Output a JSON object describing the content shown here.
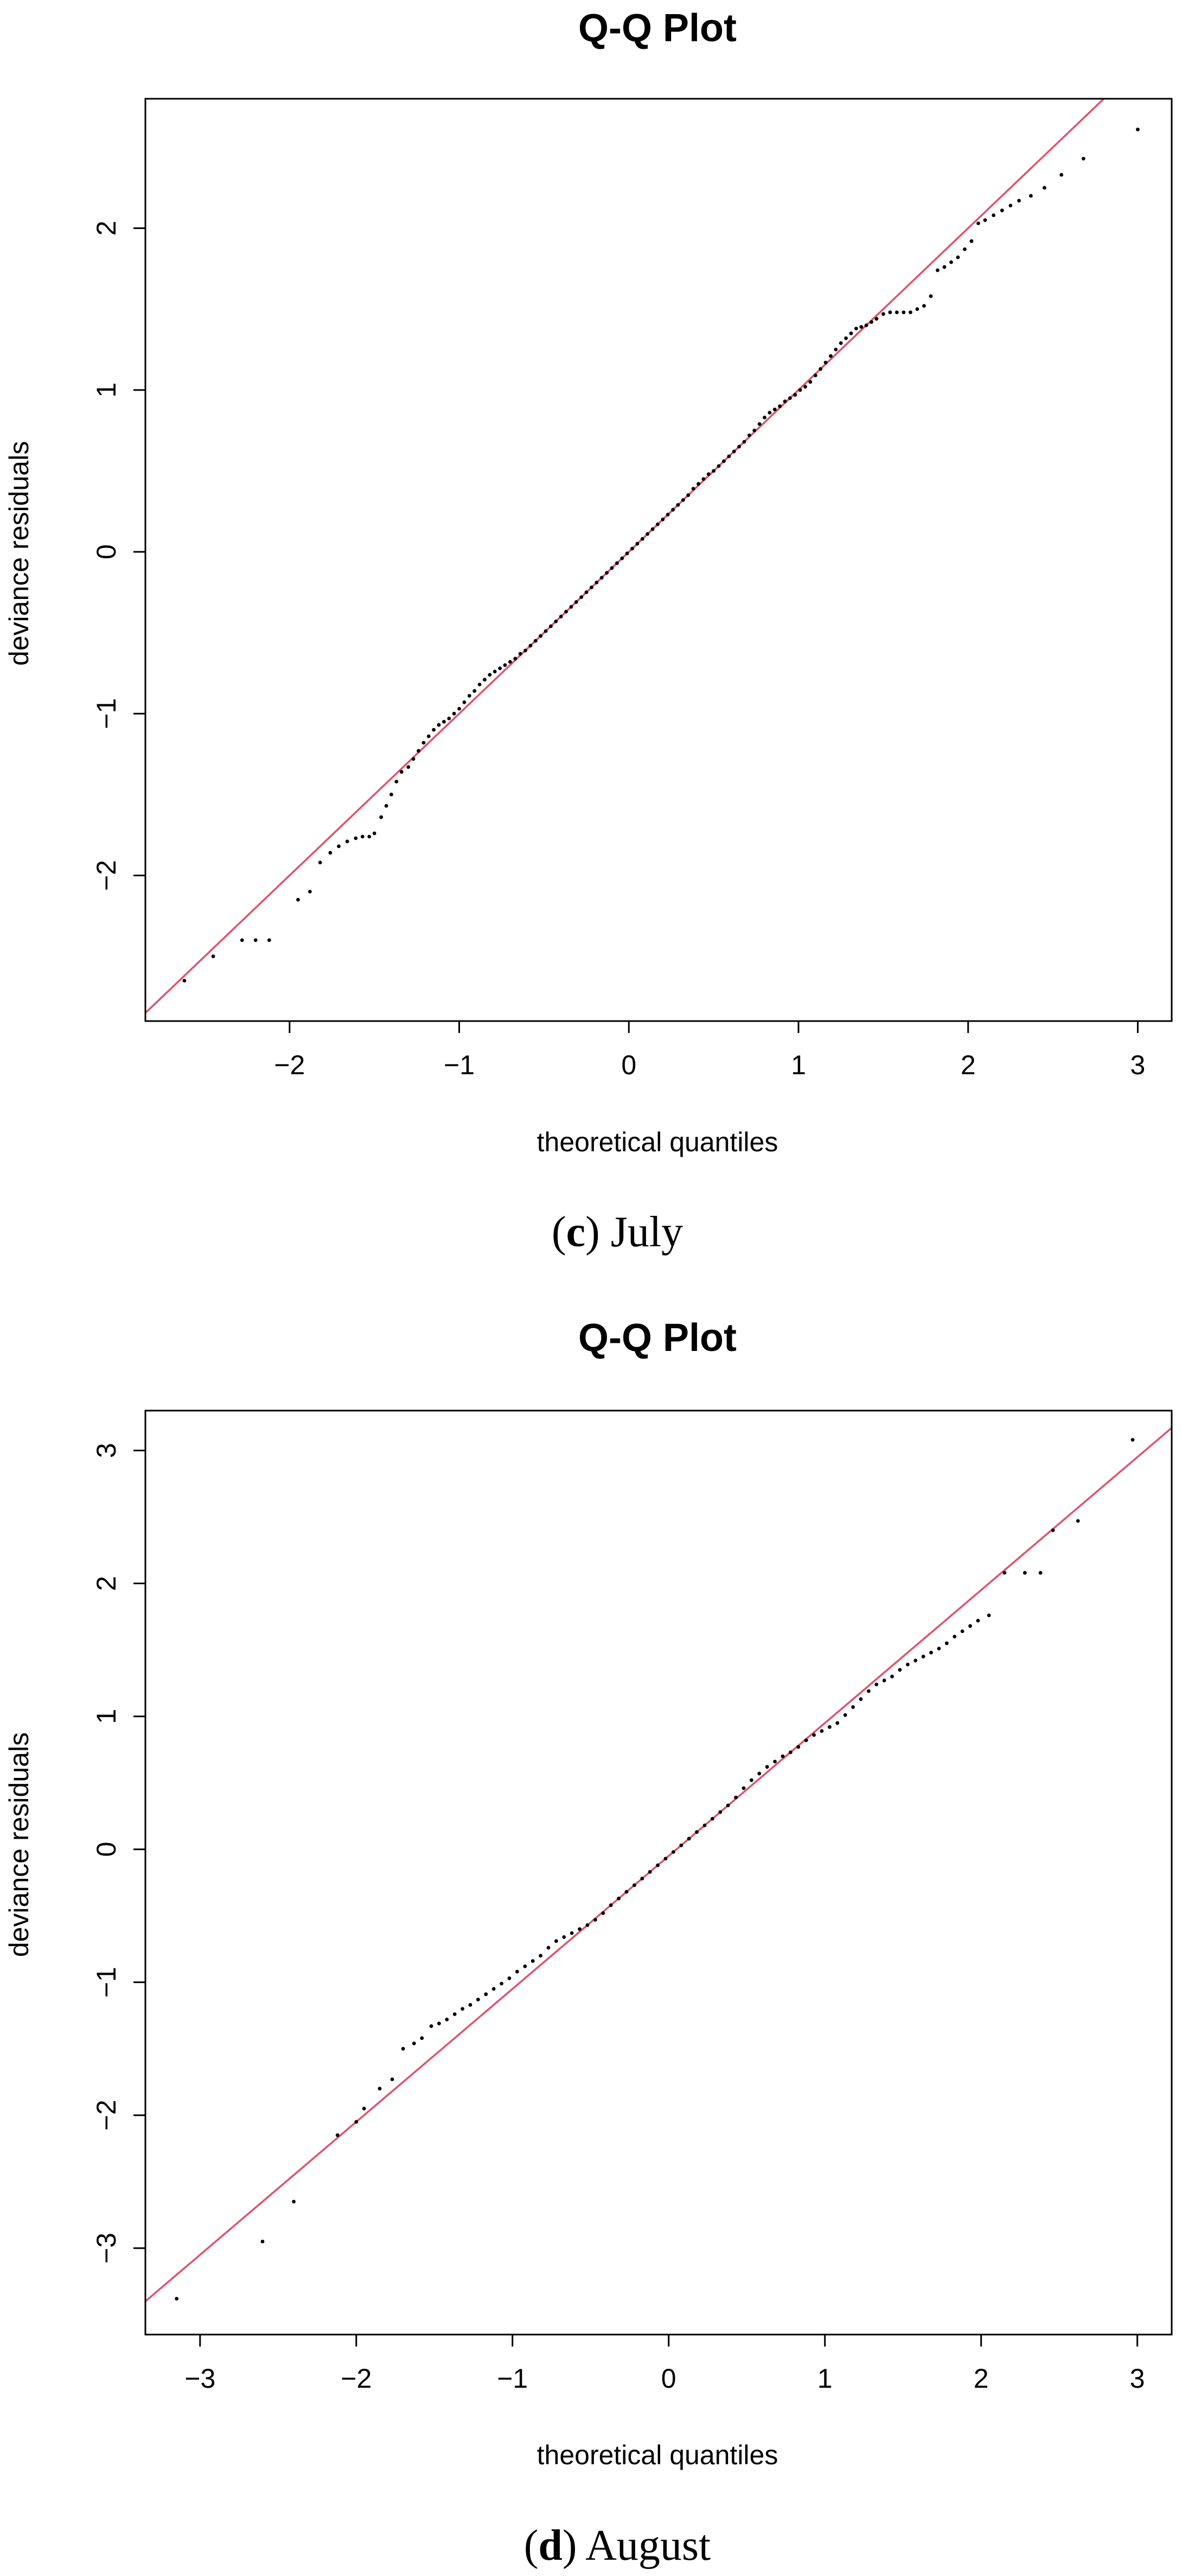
{
  "chart_data": [
    {
      "type": "scatter",
      "title": "Q-Q Plot",
      "xlabel": "theoretical quantiles",
      "ylabel": "deviance residuals",
      "caption_letter": "c",
      "caption_text": "July",
      "xlim": [
        -2.85,
        3.2
      ],
      "ylim": [
        -2.9,
        2.8
      ],
      "xticks": [
        -2,
        -1,
        0,
        1,
        2,
        3
      ],
      "xtick_labels": [
        "−2",
        "−1",
        "0",
        "1",
        "2",
        "3"
      ],
      "yticks": [
        -2,
        -1,
        0,
        1,
        2
      ],
      "ytick_labels": [
        "−2",
        "−1",
        "0",
        "1",
        "2"
      ],
      "reference_line": {
        "slope": 1.0,
        "intercept": 0.0,
        "color": "#df536b"
      },
      "point_color": "#000000",
      "points": [
        [
          -2.62,
          -2.65
        ],
        [
          -2.45,
          -2.5
        ],
        [
          -2.28,
          -2.4
        ],
        [
          -2.2,
          -2.4
        ],
        [
          -2.12,
          -2.4
        ],
        [
          -1.95,
          -2.15
        ],
        [
          -1.88,
          -2.1
        ],
        [
          -1.82,
          -1.92
        ],
        [
          -1.76,
          -1.86
        ],
        [
          -1.71,
          -1.82
        ],
        [
          -1.66,
          -1.79
        ],
        [
          -1.61,
          -1.77
        ],
        [
          -1.57,
          -1.76
        ],
        [
          -1.53,
          -1.76
        ],
        [
          -1.5,
          -1.74
        ],
        [
          -1.46,
          -1.64
        ],
        [
          -1.43,
          -1.57
        ],
        [
          -1.4,
          -1.5
        ],
        [
          -1.37,
          -1.42
        ],
        [
          -1.34,
          -1.36
        ],
        [
          -1.3,
          -1.33
        ],
        [
          -1.27,
          -1.28
        ],
        [
          -1.24,
          -1.23
        ],
        [
          -1.21,
          -1.18
        ],
        [
          -1.18,
          -1.14
        ],
        [
          -1.15,
          -1.1
        ],
        [
          -1.12,
          -1.07
        ],
        [
          -1.09,
          -1.05
        ],
        [
          -1.06,
          -1.03
        ],
        [
          -1.03,
          -1.0
        ],
        [
          -1.0,
          -0.97
        ],
        [
          -0.97,
          -0.93
        ],
        [
          -0.94,
          -0.89
        ],
        [
          -0.91,
          -0.86
        ],
        [
          -0.88,
          -0.82
        ],
        [
          -0.85,
          -0.79
        ],
        [
          -0.82,
          -0.76
        ],
        [
          -0.79,
          -0.74
        ],
        [
          -0.76,
          -0.72
        ],
        [
          -0.73,
          -0.7
        ],
        [
          -0.7,
          -0.68
        ],
        [
          -0.67,
          -0.66
        ],
        [
          -0.64,
          -0.63
        ],
        [
          -0.61,
          -0.61
        ],
        [
          -0.58,
          -0.58
        ],
        [
          -0.55,
          -0.55
        ],
        [
          -0.52,
          -0.52
        ],
        [
          -0.49,
          -0.49
        ],
        [
          -0.46,
          -0.46
        ],
        [
          -0.43,
          -0.43
        ],
        [
          -0.4,
          -0.4
        ],
        [
          -0.37,
          -0.37
        ],
        [
          -0.34,
          -0.34
        ],
        [
          -0.31,
          -0.31
        ],
        [
          -0.28,
          -0.28
        ],
        [
          -0.25,
          -0.25
        ],
        [
          -0.22,
          -0.22
        ],
        [
          -0.19,
          -0.19
        ],
        [
          -0.16,
          -0.16
        ],
        [
          -0.13,
          -0.13
        ],
        [
          -0.1,
          -0.1
        ],
        [
          -0.07,
          -0.07
        ],
        [
          -0.04,
          -0.04
        ],
        [
          -0.01,
          -0.01
        ],
        [
          0.02,
          0.02
        ],
        [
          0.05,
          0.05
        ],
        [
          0.08,
          0.08
        ],
        [
          0.11,
          0.11
        ],
        [
          0.14,
          0.14
        ],
        [
          0.17,
          0.17
        ],
        [
          0.2,
          0.2
        ],
        [
          0.23,
          0.23
        ],
        [
          0.26,
          0.26
        ],
        [
          0.29,
          0.29
        ],
        [
          0.32,
          0.32
        ],
        [
          0.35,
          0.35
        ],
        [
          0.38,
          0.39
        ],
        [
          0.41,
          0.42
        ],
        [
          0.44,
          0.45
        ],
        [
          0.47,
          0.48
        ],
        [
          0.5,
          0.5
        ],
        [
          0.53,
          0.53
        ],
        [
          0.56,
          0.56
        ],
        [
          0.59,
          0.59
        ],
        [
          0.62,
          0.62
        ],
        [
          0.65,
          0.65
        ],
        [
          0.68,
          0.68
        ],
        [
          0.71,
          0.72
        ],
        [
          0.74,
          0.75
        ],
        [
          0.77,
          0.79
        ],
        [
          0.8,
          0.83
        ],
        [
          0.83,
          0.86
        ],
        [
          0.86,
          0.88
        ],
        [
          0.89,
          0.9
        ],
        [
          0.92,
          0.93
        ],
        [
          0.95,
          0.95
        ],
        [
          0.98,
          0.97
        ],
        [
          1.01,
          1.0
        ],
        [
          1.04,
          1.02
        ],
        [
          1.07,
          1.05
        ],
        [
          1.1,
          1.09
        ],
        [
          1.13,
          1.13
        ],
        [
          1.16,
          1.17
        ],
        [
          1.19,
          1.21
        ],
        [
          1.22,
          1.25
        ],
        [
          1.25,
          1.29
        ],
        [
          1.28,
          1.32
        ],
        [
          1.31,
          1.35
        ],
        [
          1.34,
          1.38
        ],
        [
          1.37,
          1.39
        ],
        [
          1.4,
          1.4
        ],
        [
          1.43,
          1.42
        ],
        [
          1.46,
          1.44
        ],
        [
          1.5,
          1.47
        ],
        [
          1.54,
          1.48
        ],
        [
          1.58,
          1.48
        ],
        [
          1.62,
          1.48
        ],
        [
          1.66,
          1.48
        ],
        [
          1.7,
          1.5
        ],
        [
          1.74,
          1.52
        ],
        [
          1.78,
          1.58
        ],
        [
          1.82,
          1.74
        ],
        [
          1.86,
          1.76
        ],
        [
          1.9,
          1.79
        ],
        [
          1.94,
          1.82
        ],
        [
          1.98,
          1.87
        ],
        [
          2.02,
          1.92
        ],
        [
          2.06,
          2.03
        ],
        [
          2.1,
          2.05
        ],
        [
          2.15,
          2.08
        ],
        [
          2.2,
          2.11
        ],
        [
          2.25,
          2.14
        ],
        [
          2.3,
          2.17
        ],
        [
          2.37,
          2.2
        ],
        [
          2.45,
          2.25
        ],
        [
          2.55,
          2.33
        ],
        [
          2.68,
          2.43
        ],
        [
          3.0,
          2.61
        ]
      ]
    },
    {
      "type": "scatter",
      "title": "Q-Q Plot",
      "xlabel": "theoretical quantiles",
      "ylabel": "deviance residuals",
      "caption_letter": "d",
      "caption_text": "August",
      "xlim": [
        -3.35,
        3.22
      ],
      "ylim": [
        -3.65,
        3.3
      ],
      "xticks": [
        -3,
        -2,
        -1,
        0,
        1,
        2,
        3
      ],
      "xtick_labels": [
        "−3",
        "−2",
        "−1",
        "0",
        "1",
        "2",
        "3"
      ],
      "yticks": [
        -3,
        -2,
        -1,
        0,
        1,
        2,
        3
      ],
      "ytick_labels": [
        "−3",
        "−2",
        "−1",
        "0",
        "1",
        "2",
        "3"
      ],
      "reference_line": {
        "slope": 1.0,
        "intercept": -0.05,
        "color": "#df536b"
      },
      "point_color": "#000000",
      "points": [
        [
          -3.15,
          -3.38
        ],
        [
          -2.6,
          -2.95
        ],
        [
          -2.4,
          -2.65
        ],
        [
          -2.12,
          -2.15
        ],
        [
          -2.0,
          -2.05
        ],
        [
          -1.95,
          -1.95
        ],
        [
          -1.85,
          -1.8
        ],
        [
          -1.77,
          -1.73
        ],
        [
          -1.7,
          -1.5
        ],
        [
          -1.63,
          -1.46
        ],
        [
          -1.58,
          -1.42
        ],
        [
          -1.52,
          -1.33
        ],
        [
          -1.47,
          -1.31
        ],
        [
          -1.42,
          -1.28
        ],
        [
          -1.37,
          -1.24
        ],
        [
          -1.32,
          -1.2
        ],
        [
          -1.27,
          -1.17
        ],
        [
          -1.22,
          -1.13
        ],
        [
          -1.17,
          -1.09
        ],
        [
          -1.12,
          -1.05
        ],
        [
          -1.07,
          -1.01
        ],
        [
          -1.02,
          -0.97
        ],
        [
          -0.97,
          -0.92
        ],
        [
          -0.92,
          -0.88
        ],
        [
          -0.87,
          -0.84
        ],
        [
          -0.82,
          -0.8
        ],
        [
          -0.77,
          -0.74
        ],
        [
          -0.72,
          -0.69
        ],
        [
          -0.67,
          -0.66
        ],
        [
          -0.62,
          -0.63
        ],
        [
          -0.57,
          -0.6
        ],
        [
          -0.52,
          -0.57
        ],
        [
          -0.47,
          -0.53
        ],
        [
          -0.42,
          -0.48
        ],
        [
          -0.37,
          -0.42
        ],
        [
          -0.32,
          -0.37
        ],
        [
          -0.27,
          -0.32
        ],
        [
          -0.22,
          -0.27
        ],
        [
          -0.17,
          -0.22
        ],
        [
          -0.12,
          -0.17
        ],
        [
          -0.07,
          -0.12
        ],
        [
          -0.02,
          -0.07
        ],
        [
          0.03,
          -0.02
        ],
        [
          0.08,
          0.03
        ],
        [
          0.13,
          0.08
        ],
        [
          0.18,
          0.13
        ],
        [
          0.23,
          0.18
        ],
        [
          0.28,
          0.23
        ],
        [
          0.33,
          0.28
        ],
        [
          0.38,
          0.33
        ],
        [
          0.43,
          0.39
        ],
        [
          0.48,
          0.46
        ],
        [
          0.53,
          0.52
        ],
        [
          0.58,
          0.57
        ],
        [
          0.63,
          0.62
        ],
        [
          0.68,
          0.66
        ],
        [
          0.73,
          0.7
        ],
        [
          0.78,
          0.73
        ],
        [
          0.83,
          0.77
        ],
        [
          0.88,
          0.82
        ],
        [
          0.93,
          0.86
        ],
        [
          0.98,
          0.89
        ],
        [
          1.03,
          0.92
        ],
        [
          1.08,
          0.95
        ],
        [
          1.13,
          1.01
        ],
        [
          1.18,
          1.07
        ],
        [
          1.23,
          1.13
        ],
        [
          1.28,
          1.19
        ],
        [
          1.33,
          1.24
        ],
        [
          1.38,
          1.27
        ],
        [
          1.43,
          1.3
        ],
        [
          1.48,
          1.35
        ],
        [
          1.53,
          1.39
        ],
        [
          1.58,
          1.42
        ],
        [
          1.63,
          1.45
        ],
        [
          1.68,
          1.48
        ],
        [
          1.73,
          1.51
        ],
        [
          1.78,
          1.55
        ],
        [
          1.83,
          1.6
        ],
        [
          1.88,
          1.64
        ],
        [
          1.93,
          1.68
        ],
        [
          1.98,
          1.72
        ],
        [
          2.05,
          1.76
        ],
        [
          2.15,
          2.08
        ],
        [
          2.28,
          2.08
        ],
        [
          2.38,
          2.08
        ],
        [
          2.46,
          2.4
        ],
        [
          2.62,
          2.47
        ],
        [
          2.97,
          3.08
        ]
      ]
    }
  ]
}
